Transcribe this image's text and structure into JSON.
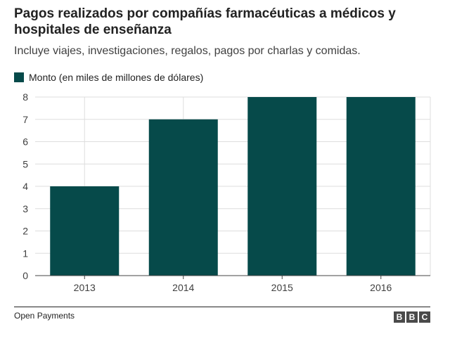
{
  "title": "Pagos realizados por compañías farmacéuticas a médicos y hospitales de enseñanza",
  "subtitle": "Incluye viajes, investigaciones, regalos, pagos por charlas y comidas.",
  "source": "Open Payments",
  "logo": [
    "B",
    "B",
    "C"
  ],
  "colors": {
    "bar": "#064a4a",
    "grid": "#dddddd",
    "axis": "#444444"
  },
  "chart_data": {
    "type": "bar",
    "categories": [
      "2013",
      "2014",
      "2015",
      "2016"
    ],
    "series": [
      {
        "name": "Monto (en miles de millones de dólares)",
        "values": [
          4,
          7,
          8,
          8
        ]
      }
    ],
    "yticks": [
      0,
      1,
      2,
      3,
      4,
      5,
      6,
      7,
      8
    ],
    "ylim": [
      0,
      8
    ],
    "grid": true,
    "legend": "top-left"
  }
}
